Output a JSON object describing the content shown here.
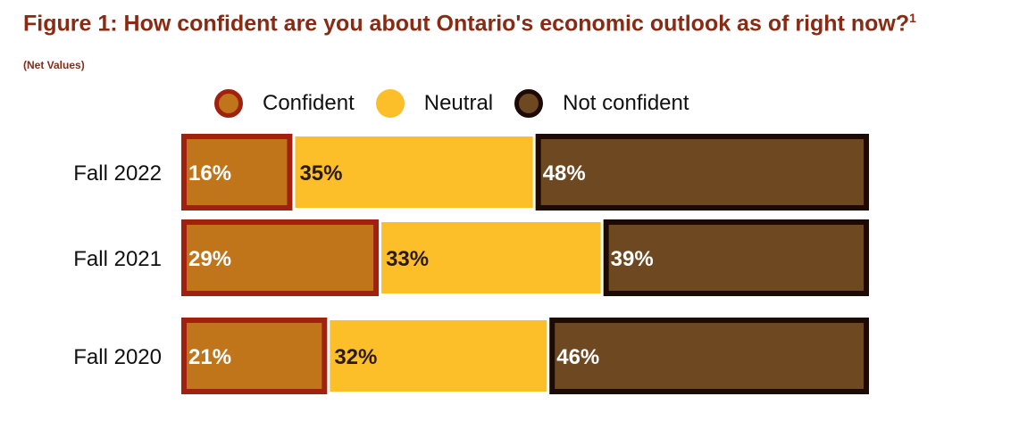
{
  "chart_data": {
    "type": "bar",
    "orientation": "horizontal",
    "stacked": true,
    "title": "Figure 1: How confident are you about Ontario's economic outlook as of right now?",
    "title_footnote": "1",
    "subtitle": "(Net Values)",
    "categories": [
      "Fall 2022",
      "Fall 2021",
      "Fall 2020"
    ],
    "series": [
      {
        "name": "Confident",
        "values": [
          16,
          29,
          21
        ],
        "labels": [
          "16%",
          "29%",
          "21%"
        ],
        "color": "#c0751a",
        "border": "#a0220e"
      },
      {
        "name": "Neutral",
        "values": [
          35,
          33,
          32
        ],
        "labels": [
          "35%",
          "33%",
          "32%"
        ],
        "color": "#fcbf2a",
        "border": "#fcbf2a"
      },
      {
        "name": "Not confident",
        "values": [
          48,
          39,
          46
        ],
        "labels": [
          "48%",
          "39%",
          "46%"
        ],
        "color": "#6e4820",
        "border": "#1e0a05"
      }
    ],
    "legend_position": "top",
    "grid": false
  }
}
